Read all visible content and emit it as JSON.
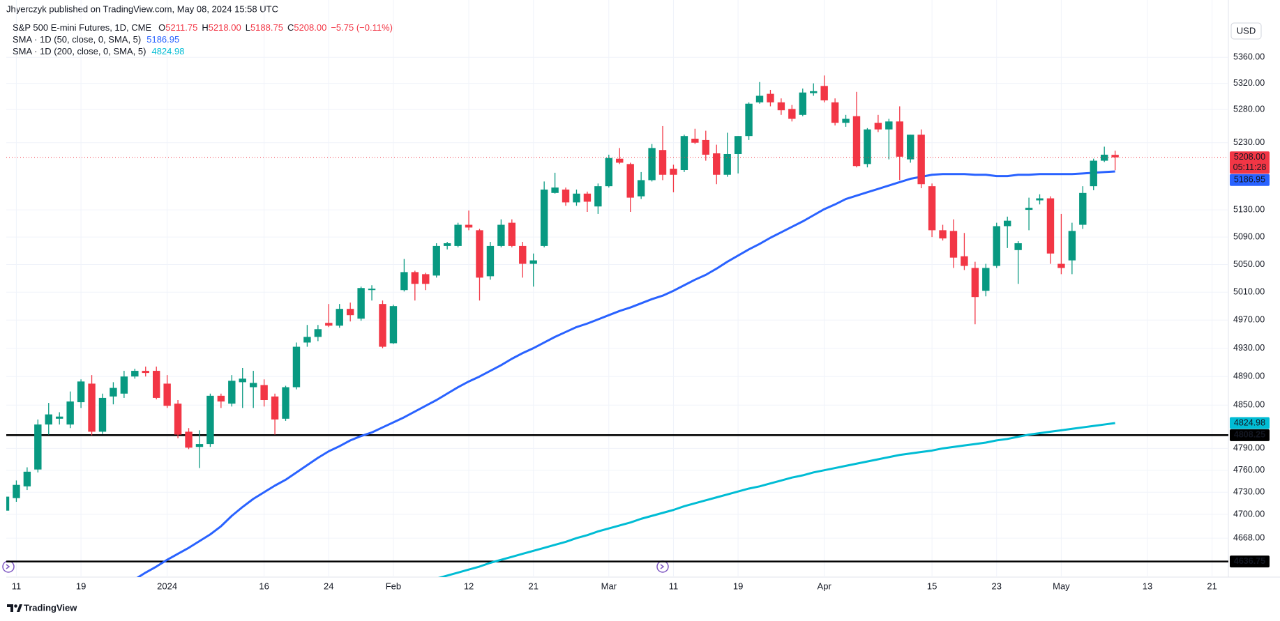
{
  "header": {
    "attribution": "Jhyerczyk published on TradingView.com, May 08, 2024 15:58 UTC",
    "currency": "USD"
  },
  "footer": {
    "brand": "TradingView"
  },
  "chart_data": {
    "type": "candlestick",
    "log_scale": true,
    "grid": true,
    "up_color": "#089981",
    "down_color": "#f23645",
    "legend": {
      "symbol": "S&P 500 E-mini Futures, 1D, CME",
      "color": "#f23645",
      "ohlc": [
        {
          "key": "O",
          "text": "5211.75"
        },
        {
          "key": "H",
          "text": "5218.00"
        },
        {
          "key": "L",
          "text": "5188.75"
        },
        {
          "key": "C",
          "text": "5208.00"
        }
      ],
      "change": "−5.75 (−0.11%)"
    },
    "ylim": [
      4616,
      5449
    ],
    "yticks": [
      {
        "value": 5360,
        "label": "5360.00"
      },
      {
        "value": 5320,
        "label": "5320.00"
      },
      {
        "value": 5280,
        "label": "5280.00"
      },
      {
        "value": 5230,
        "label": "5230.00"
      },
      {
        "value": 5130,
        "label": "5130.00"
      },
      {
        "value": 5090,
        "label": "5090.00"
      },
      {
        "value": 5050,
        "label": "5050.00"
      },
      {
        "value": 5010,
        "label": "5010.00"
      },
      {
        "value": 4970,
        "label": "4970.00"
      },
      {
        "value": 4930,
        "label": "4930.00"
      },
      {
        "value": 4890,
        "label": "4890.00"
      },
      {
        "value": 4850,
        "label": "4850.00"
      },
      {
        "value": 4790,
        "label": "4790.00"
      },
      {
        "value": 4760,
        "label": "4760.00"
      },
      {
        "value": 4730,
        "label": "4730.00"
      },
      {
        "value": 4700,
        "label": "4700.00"
      },
      {
        "value": 4668,
        "label": "4668.00"
      }
    ],
    "categories": [
      null,
      "11",
      null,
      null,
      null,
      null,
      null,
      "19",
      null,
      null,
      null,
      null,
      null,
      null,
      null,
      "2024",
      null,
      null,
      null,
      null,
      null,
      null,
      null,
      null,
      "16",
      null,
      null,
      null,
      null,
      null,
      "24",
      null,
      null,
      null,
      null,
      null,
      "Feb",
      null,
      null,
      null,
      null,
      null,
      null,
      "12",
      null,
      null,
      null,
      null,
      null,
      "21",
      null,
      null,
      null,
      null,
      null,
      null,
      "Mar",
      null,
      null,
      null,
      null,
      null,
      "11",
      null,
      null,
      null,
      null,
      null,
      "19",
      null,
      null,
      null,
      null,
      null,
      null,
      null,
      "Apr",
      null,
      null,
      null,
      null,
      null,
      null,
      null,
      null,
      null,
      "15",
      null,
      null,
      null,
      null,
      null,
      "23",
      null,
      null,
      null,
      null,
      null,
      "May",
      null,
      null,
      null,
      null,
      null,
      null,
      null,
      "13",
      null,
      null,
      null,
      null,
      null,
      "21",
      null
    ],
    "open": [
      4705,
      4722,
      4738,
      4761,
      4823,
      4831,
      4823,
      4854,
      4880,
      4813,
      4862,
      4866,
      4890,
      4898,
      4898,
      4880,
      4852,
      4813,
      4792,
      4796,
      4863,
      4852,
      4882,
      4875,
      4878,
      4862,
      4831,
      4875,
      4938,
      4946,
      4966,
      4962,
      4986,
      4972,
      5013,
      4993,
      4937,
      5013,
      5039,
      5036,
      5034,
      5077,
      5077,
      5108,
      5100,
      5033,
      5077,
      5111,
      5077,
      5051,
      5077,
      5155,
      5160,
      5141,
      5154,
      5135,
      5165,
      5206,
      5198,
      5150,
      5174,
      5219,
      5191,
      5189,
      5236,
      5234,
      5214,
      5182,
      5213,
      5240,
      5291,
      5304,
      5291,
      5281,
      5272,
      5305,
      5316,
      5291,
      5260,
      5270,
      5198,
      5260,
      5250,
      5262,
      5205,
      5242,
      5165,
      5100,
      5099,
      5062,
      5045,
      5012,
      5048,
      5106,
      5071,
      5130,
      5144,
      5147,
      5051,
      5056,
      5108,
      5165,
      5203,
      5211.75,
      null,
      null,
      null,
      null,
      null,
      null,
      null,
      null,
      null,
      null
    ],
    "high": [
      4730,
      4746,
      4764,
      4830,
      4853,
      4840,
      4869,
      4886,
      4892,
      4866,
      4882,
      4898,
      4901,
      4904,
      4904,
      4892,
      4857,
      4818,
      4815,
      4866,
      4866,
      4892,
      4902,
      4898,
      4886,
      4866,
      4877,
      4938,
      4963,
      4963,
      4993,
      4993,
      4995,
      5018,
      5020,
      4998,
      4992,
      5058,
      5041,
      5038,
      5081,
      5083,
      5111,
      5129,
      5102,
      5083,
      5116,
      5116,
      5083,
      5066,
      5172,
      5185,
      5163,
      5160,
      5157,
      5169,
      5212,
      5222,
      5200,
      5186,
      5228,
      5255,
      5197,
      5242,
      5251,
      5248,
      5227,
      5245,
      5240,
      5291,
      5322,
      5310,
      5297,
      5287,
      5312,
      5320,
      5332,
      5297,
      5272,
      5307,
      5252,
      5272,
      5266,
      5285,
      5242,
      5250,
      5169,
      5108,
      5116,
      5096,
      5054,
      5051,
      5111,
      5120,
      5084,
      5148,
      5153,
      5150,
      5124,
      5111,
      5165,
      5206,
      5224,
      5218,
      null,
      null,
      null,
      null,
      null,
      null,
      null,
      null,
      null,
      null
    ],
    "low": [
      4700,
      4717,
      4733,
      4757,
      4809,
      4823,
      4818,
      4846,
      4808,
      4810,
      4851,
      4860,
      4887,
      4890,
      4858,
      4846,
      4804,
      4789,
      4763,
      4792,
      4846,
      4848,
      4846,
      4846,
      4848,
      4809,
      4828,
      4872,
      4932,
      4940,
      4960,
      4959,
      4968,
      4969,
      4998,
      4930,
      4936,
      5011,
      4998,
      5013,
      5031,
      5072,
      5075,
      5100,
      4998,
      5028,
      5075,
      5075,
      5031,
      5018,
      5075,
      5154,
      5136,
      5136,
      5127,
      5124,
      5163,
      5198,
      5127,
      5146,
      5172,
      5174,
      5156,
      5186,
      5228,
      5203,
      5168,
      5179,
      5184,
      5234,
      5289,
      5285,
      5272,
      5262,
      5270,
      5301,
      5291,
      5256,
      5254,
      5193,
      5193,
      5246,
      5205,
      5174,
      5200,
      5162,
      5090,
      5085,
      5045,
      5042,
      4964,
      5004,
      5045,
      5074,
      5022,
      5100,
      5138,
      5051,
      5036,
      5036,
      5102,
      5159,
      5201,
      5188.75,
      null,
      null,
      null,
      null,
      null,
      null,
      null,
      null,
      null,
      null
    ],
    "close": [
      4724,
      4740,
      4758,
      4823,
      4837,
      4834,
      4855,
      4883,
      4813,
      4860,
      4874,
      4890,
      4898,
      4895,
      4860,
      4849,
      4809,
      4791,
      4796,
      4863,
      4855,
      4884,
      4887,
      4881,
      4857,
      4830,
      4875,
      4932,
      4946,
      4957,
      4962,
      4986,
      4977,
      5016,
      5015,
      4932,
      4990,
      5039,
      5022,
      5022,
      5077,
      5081,
      5108,
      5104,
      5031,
      5077,
      5108,
      5077,
      5051,
      5056,
      5160,
      5163,
      5141,
      5154,
      5142,
      5165,
      5207,
      5200,
      5148,
      5174,
      5222,
      5182,
      5182,
      5240,
      5230,
      5212,
      5182,
      5213,
      5240,
      5289,
      5301,
      5291,
      5279,
      5266,
      5306,
      5308,
      5294,
      5260,
      5266,
      5195,
      5250,
      5250,
      5262,
      5209,
      5242,
      5168,
      5100,
      5088,
      5060,
      5048,
      5003,
      5045,
      5106,
      5114,
      5081,
      5133,
      5147,
      5066,
      5045,
      5099,
      5155,
      5203,
      5212,
      5208,
      null,
      null,
      null,
      null,
      null,
      null,
      null,
      null,
      null,
      null
    ],
    "series": [
      {
        "name": "SMA · 1D (50, close, 0, SMA, 5)",
        "color": "#2962ff",
        "last_label": "5186.95",
        "values": [
          null,
          null,
          null,
          null,
          null,
          null,
          null,
          null,
          null,
          null,
          null,
          null,
          4613,
          4622,
          4630,
          4639,
          4647,
          4655,
          4664,
          4673,
          4684,
          4698,
          4710,
          4721,
          4730,
          4739,
          4747,
          4757,
          4767,
          4777,
          4786,
          4793,
          4801,
          4807,
          4812,
          4819,
          4826,
          4833,
          4841,
          4849,
          4857,
          4866,
          4875,
          4883,
          4890,
          4898,
          4906,
          4915,
          4923,
          4930,
          4938,
          4946,
          4953,
          4960,
          4965,
          4971,
          4977,
          4983,
          4988,
          4994,
          5000,
          5005,
          5012,
          5020,
          5028,
          5035,
          5044,
          5054,
          5063,
          5072,
          5080,
          5089,
          5097,
          5105,
          5113,
          5122,
          5131,
          5138,
          5146,
          5151,
          5156,
          5161,
          5166,
          5171,
          5176,
          5179,
          5182,
          5183,
          5183,
          5183,
          5182,
          5182,
          5180,
          5180,
          5182,
          5182,
          5183,
          5183,
          5183,
          5183,
          5184,
          5185,
          5186,
          5186.95,
          null,
          null,
          null,
          null,
          null,
          null,
          null,
          null,
          null,
          null
        ]
      },
      {
        "name": "SMA · 1D (200, close, 0, SMA, 5)",
        "color": "#00bcd4",
        "last_label": "4824.98",
        "values": [
          null,
          null,
          null,
          null,
          null,
          null,
          null,
          null,
          null,
          null,
          null,
          null,
          null,
          null,
          null,
          null,
          null,
          null,
          null,
          null,
          null,
          null,
          null,
          null,
          null,
          null,
          null,
          null,
          null,
          null,
          null,
          null,
          null,
          null,
          null,
          null,
          null,
          null,
          null,
          null,
          4614,
          4618,
          4622,
          4626,
          4630,
          4635,
          4639,
          4643,
          4647,
          4651,
          4655,
          4659,
          4663,
          4668,
          4672,
          4677,
          4681,
          4685,
          4689,
          4694,
          4698,
          4702,
          4706,
          4711,
          4715,
          4719,
          4723,
          4727,
          4731,
          4735,
          4738,
          4742,
          4746,
          4750,
          4753,
          4757,
          4760,
          4763,
          4766,
          4769,
          4772,
          4775,
          4778,
          4781,
          4783,
          4785,
          4787,
          4790,
          4792,
          4794,
          4796,
          4798,
          4801,
          4803,
          4806,
          4809,
          4811,
          4813,
          4815,
          4817,
          4819,
          4821,
          4823,
          4824.98,
          null,
          null,
          null,
          null,
          null,
          null,
          null,
          null,
          null,
          null
        ]
      }
    ],
    "last_price": {
      "value": 5208,
      "label": "5208.00",
      "countdown": "05:11:28",
      "color": "#f23645"
    },
    "hlines": [
      {
        "value": 4808.25,
        "label": "4808.25",
        "color": "#000000"
      },
      {
        "value": 4636.75,
        "label": "4636.75",
        "color": "#000000"
      }
    ]
  }
}
